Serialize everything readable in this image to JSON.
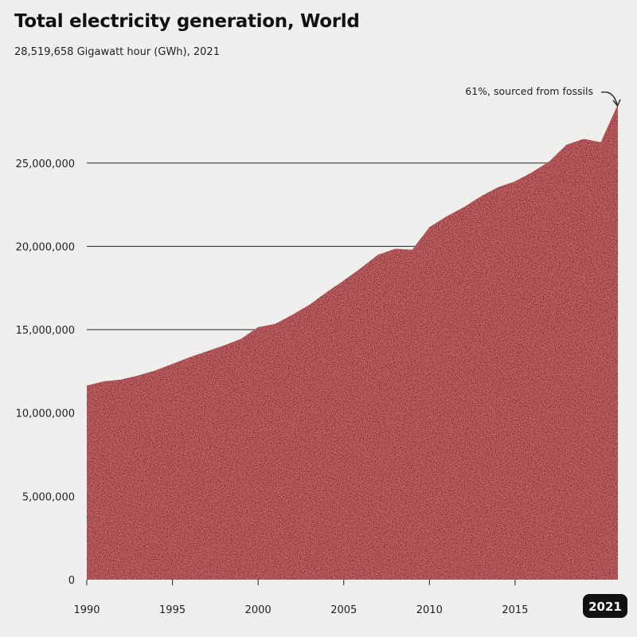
{
  "header": {
    "title": "Total electricity generation, World",
    "subtitle": "28,519,658 Gigawatt hour (GWh), 2021"
  },
  "annotation": {
    "text": "61%, sourced from fossils"
  },
  "badge": {
    "label": "2021"
  },
  "colors": {
    "area_fill": "#cc6266",
    "gridline": "#222222",
    "badge_bg": "#111111",
    "background": "#efefed"
  },
  "chart_data": {
    "type": "area",
    "title": "Total electricity generation, World",
    "subtitle": "28,519,658 Gigawatt hour (GWh), 2021",
    "xlabel": "",
    "ylabel": "",
    "x_ticks": [
      1990,
      1995,
      2000,
      2005,
      2010,
      2015
    ],
    "y_ticks": [
      0,
      5000000,
      10000000,
      15000000,
      20000000,
      25000000
    ],
    "y_tick_labels": [
      "0",
      "5,000,000",
      "10,000,000",
      "15,000,000",
      "20,000,000",
      "25,000,000"
    ],
    "xlim": [
      1990,
      2021
    ],
    "ylim": [
      0,
      28519658
    ],
    "grid": "horizontal",
    "x": [
      1990,
      1991,
      1992,
      1993,
      1994,
      1995,
      1996,
      1997,
      1998,
      1999,
      2000,
      2001,
      2002,
      2003,
      2004,
      2005,
      2006,
      2007,
      2008,
      2009,
      2010,
      2011,
      2012,
      2013,
      2014,
      2015,
      2016,
      2017,
      2018,
      2019,
      2020,
      2021
    ],
    "series": [
      {
        "values": [
          11650000,
          11900000,
          12000000,
          12250000,
          12550000,
          12950000,
          13350000,
          13700000,
          14050000,
          14450000,
          15150000,
          15350000,
          15900000,
          16500000,
          17250000,
          17950000,
          18700000,
          19500000,
          19850000,
          19800000,
          21150000,
          21800000,
          22350000,
          23000000,
          23550000,
          23900000,
          24450000,
          25100000,
          26100000,
          26450000,
          26250000,
          28519658
        ]
      }
    ]
  }
}
